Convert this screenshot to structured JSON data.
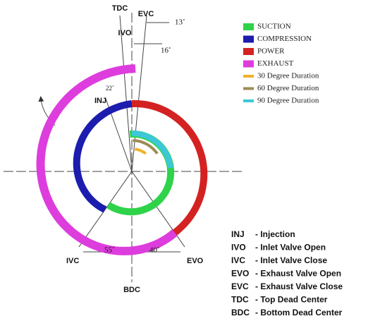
{
  "diagram": {
    "labels": {
      "tdc": "TDC",
      "evc": "EVC",
      "evc_angle": "13˚",
      "ivo": "IVO",
      "ivo_angle": "16˚",
      "inj_angle": "22˚",
      "inj": "INJ",
      "ivc": "IVC",
      "ivc_angle": "55˚",
      "evo_angle": "40˚",
      "evo": "EVO",
      "bdc": "BDC"
    },
    "legend": [
      "SUCTION",
      "COMPRESSION",
      "POWER",
      "EXHAUST",
      "30 Degree Duration",
      "60 Degree Duration",
      "90 Degree Duration"
    ],
    "definitions": [
      {
        "abbr": "INJ",
        "text": "- Injection"
      },
      {
        "abbr": "IVO",
        "text": "- Inlet Valve Open"
      },
      {
        "abbr": "IVC",
        "text": "- Inlet Valve Close"
      },
      {
        "abbr": "EVO",
        "text": "- Exhaust Valve Open"
      },
      {
        "abbr": "EVC",
        "text": "- Exhaust Valve Close"
      },
      {
        "abbr": "TDC",
        "text": "- Top Dead Center"
      },
      {
        "abbr": "BDC",
        "text": "- Bottom Dead Center"
      }
    ]
  }
}
